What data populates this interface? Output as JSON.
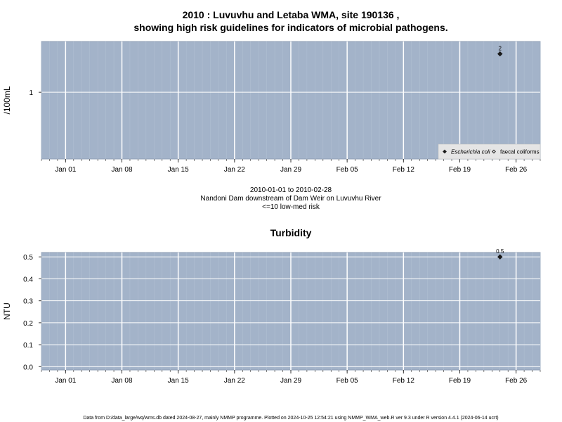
{
  "chart_data": [
    {
      "type": "scatter",
      "title_line1": "2010 : Luvuvhu and Letaba WMA, site 190136 ,",
      "title_line2": "showing high risk guidelines for indicators of microbial pathogens.",
      "ylabel": "/100mL",
      "y_scale": "log",
      "ylim": [
        0.3,
        2.5
      ],
      "y_ticks": [
        {
          "value": 1,
          "label": "1"
        }
      ],
      "xlim": [
        "2009-12-29",
        "2010-03-01"
      ],
      "x_ticks": [
        {
          "date": "2010-01-01",
          "label": "Jan 01"
        },
        {
          "date": "2010-01-08",
          "label": "Jan 08"
        },
        {
          "date": "2010-01-15",
          "label": "Jan 15"
        },
        {
          "date": "2010-01-22",
          "label": "Jan 22"
        },
        {
          "date": "2010-01-29",
          "label": "Jan 29"
        },
        {
          "date": "2010-02-05",
          "label": "Feb 05"
        },
        {
          "date": "2010-02-12",
          "label": "Feb 12"
        },
        {
          "date": "2010-02-19",
          "label": "Feb 19"
        },
        {
          "date": "2010-02-26",
          "label": "Feb 26"
        }
      ],
      "series": [
        {
          "name": "Escherichia coli",
          "marker": "filled-diamond",
          "points": [
            {
              "x": "2010-02-24",
              "y": 2,
              "label": "2"
            }
          ]
        },
        {
          "name": "faecal coliforms",
          "marker": "open-diamond",
          "points": []
        }
      ],
      "legend_position": "bottom-right",
      "grid": true,
      "background": "#a3b3c9",
      "subtitle_lines": [
        "2010-01-01 to 2010-02-28",
        "Nandoni Dam downstream of Dam Weir on Luvuvhu River",
        "<=10 low-med risk"
      ]
    },
    {
      "type": "scatter",
      "title": "Turbidity",
      "ylabel": "NTU",
      "ylim": [
        -0.015,
        0.52
      ],
      "y_ticks": [
        {
          "value": 0.0,
          "label": "0.0"
        },
        {
          "value": 0.1,
          "label": "0.1"
        },
        {
          "value": 0.2,
          "label": "0.2"
        },
        {
          "value": 0.3,
          "label": "0.3"
        },
        {
          "value": 0.4,
          "label": "0.4"
        },
        {
          "value": 0.5,
          "label": "0.5"
        }
      ],
      "xlim": [
        "2009-12-29",
        "2010-03-01"
      ],
      "x_ticks": [
        {
          "date": "2010-01-01",
          "label": "Jan 01"
        },
        {
          "date": "2010-01-08",
          "label": "Jan 08"
        },
        {
          "date": "2010-01-15",
          "label": "Jan 15"
        },
        {
          "date": "2010-01-22",
          "label": "Jan 22"
        },
        {
          "date": "2010-01-29",
          "label": "Jan 29"
        },
        {
          "date": "2010-02-05",
          "label": "Feb 05"
        },
        {
          "date": "2010-02-12",
          "label": "Feb 12"
        },
        {
          "date": "2010-02-19",
          "label": "Feb 19"
        },
        {
          "date": "2010-02-26",
          "label": "Feb 26"
        }
      ],
      "series": [
        {
          "name": "",
          "marker": "filled-diamond",
          "points": [
            {
              "x": "2010-02-24",
              "y": 0.5,
              "label": "0.5"
            }
          ]
        }
      ],
      "grid": true,
      "background": "#a3b3c9"
    }
  ],
  "footer": "Data from D:/data_large/wq/wms.db dated 2024-08-27, mainly NMMP programme. Plotted on 2024-10-25 12:54:21 using NMMP_WMA_web.R ver 9.3 under R version 4.4.1 (2024-06-14 ucrt)"
}
